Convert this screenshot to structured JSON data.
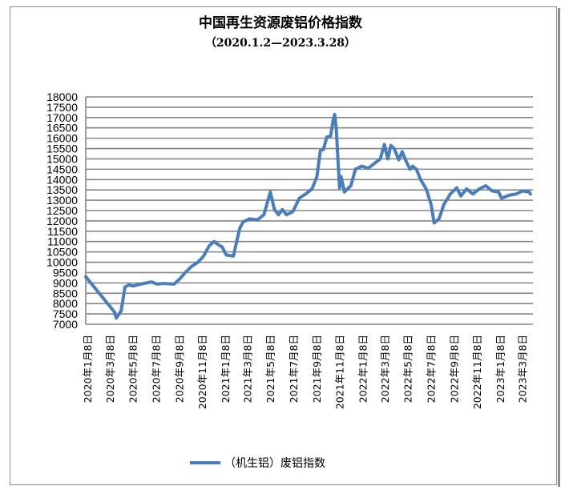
{
  "chart_data": {
    "type": "line",
    "title": "中国再生资源废铝价格指数",
    "subtitle": "（2020.1.2—2023.3.28）",
    "xlabel": "",
    "ylabel": "",
    "ylim": [
      7000,
      18000
    ],
    "yticks": [
      7000,
      7500,
      8000,
      8500,
      9000,
      9500,
      10000,
      10500,
      11000,
      11500,
      12000,
      12500,
      13000,
      13500,
      14000,
      14500,
      15000,
      15500,
      16000,
      16500,
      17000,
      17500,
      18000
    ],
    "xlim": [
      "2020-01-02",
      "2023-03-28"
    ],
    "xtick_dates": [
      "2020-01-08",
      "2020-03-08",
      "2020-05-08",
      "2020-07-08",
      "2020-09-08",
      "2020-11-08",
      "2021-01-08",
      "2021-03-08",
      "2021-05-08",
      "2021-07-08",
      "2021-09-08",
      "2021-11-08",
      "2022-01-08",
      "2022-03-08",
      "2022-05-08",
      "2022-07-08",
      "2022-09-08",
      "2022-11-08",
      "2023-01-08",
      "2023-03-08"
    ],
    "xtick_labels": [
      "2020年1月8日",
      "2020年3月8日",
      "2020年5月8日",
      "2020年7月8日",
      "2020年9月8日",
      "2020年11月8日",
      "2021年1月8日",
      "2021年3月8日",
      "2021年5月8日",
      "2021年7月8日",
      "2021年9月8日",
      "2021年11月8日",
      "2022年1月8日",
      "2022年3月8日",
      "2022年5月8日",
      "2022年7月8日",
      "2022年9月8日",
      "2022年11月8日",
      "2023年1月8日",
      "2023年3月8日"
    ],
    "grid": true,
    "legend_position": "bottom",
    "series": [
      {
        "name": "（机生铝）废铝指数",
        "color": "#4a7ebb",
        "x": [
          "2020-01-02",
          "2020-03-18",
          "2020-03-23",
          "2020-04-05",
          "2020-04-15",
          "2020-04-26",
          "2020-05-07",
          "2020-05-17",
          "2020-06-03",
          "2020-06-25",
          "2020-07-08",
          "2020-07-27",
          "2020-08-24",
          "2020-09-08",
          "2020-09-22",
          "2020-10-09",
          "2020-10-26",
          "2020-11-10",
          "2020-11-25",
          "2020-12-08",
          "2020-12-19",
          "2020-12-29",
          "2021-01-09",
          "2021-01-28",
          "2021-02-14",
          "2021-02-23",
          "2021-03-12",
          "2021-04-02",
          "2021-04-19",
          "2021-05-06",
          "2021-05-17",
          "2021-05-28",
          "2021-06-07",
          "2021-06-18",
          "2021-07-05",
          "2021-07-22",
          "2021-08-08",
          "2021-08-25",
          "2021-09-07",
          "2021-09-16",
          "2021-09-24",
          "2021-10-03",
          "2021-10-13",
          "2021-10-20",
          "2021-10-24",
          "2021-10-28",
          "2021-11-06",
          "2021-11-10",
          "2021-11-19",
          "2021-11-27",
          "2021-12-06",
          "2021-12-18",
          "2022-01-04",
          "2022-01-21",
          "2022-02-22",
          "2022-03-05",
          "2022-03-14",
          "2022-03-22",
          "2022-03-31",
          "2022-04-12",
          "2022-04-21",
          "2022-04-30",
          "2022-05-12",
          "2022-05-19",
          "2022-05-29",
          "2022-06-09",
          "2022-06-24",
          "2022-07-07",
          "2022-07-15",
          "2022-07-28",
          "2022-08-10",
          "2022-08-27",
          "2022-09-13",
          "2022-09-24",
          "2022-10-09",
          "2022-10-26",
          "2022-11-12",
          "2022-11-29",
          "2022-12-16",
          "2023-01-02",
          "2023-01-10",
          "2023-02-01",
          "2023-02-18",
          "2023-03-07",
          "2023-03-24",
          "2023-03-28"
        ],
        "values": [
          9300,
          7600,
          7300,
          7650,
          8800,
          8900,
          8850,
          8900,
          8970,
          9050,
          8950,
          8970,
          8950,
          9200,
          9500,
          9800,
          10000,
          10300,
          10800,
          11000,
          10850,
          10750,
          10350,
          10300,
          11650,
          11950,
          12100,
          12050,
          12300,
          13400,
          12550,
          12300,
          12550,
          12300,
          12450,
          13100,
          13300,
          13550,
          14150,
          15400,
          15450,
          16050,
          16100,
          16900,
          17150,
          16500,
          13600,
          14150,
          13400,
          13550,
          13700,
          14500,
          14650,
          14550,
          15000,
          15700,
          15000,
          15650,
          15500,
          14950,
          15350,
          14950,
          14500,
          14650,
          14500,
          14000,
          13550,
          12800,
          11900,
          12100,
          12800,
          13300,
          13600,
          13200,
          13550,
          13300,
          13550,
          13700,
          13450,
          13400,
          13100,
          13250,
          13300,
          13450,
          13400,
          13300
        ]
      }
    ]
  }
}
